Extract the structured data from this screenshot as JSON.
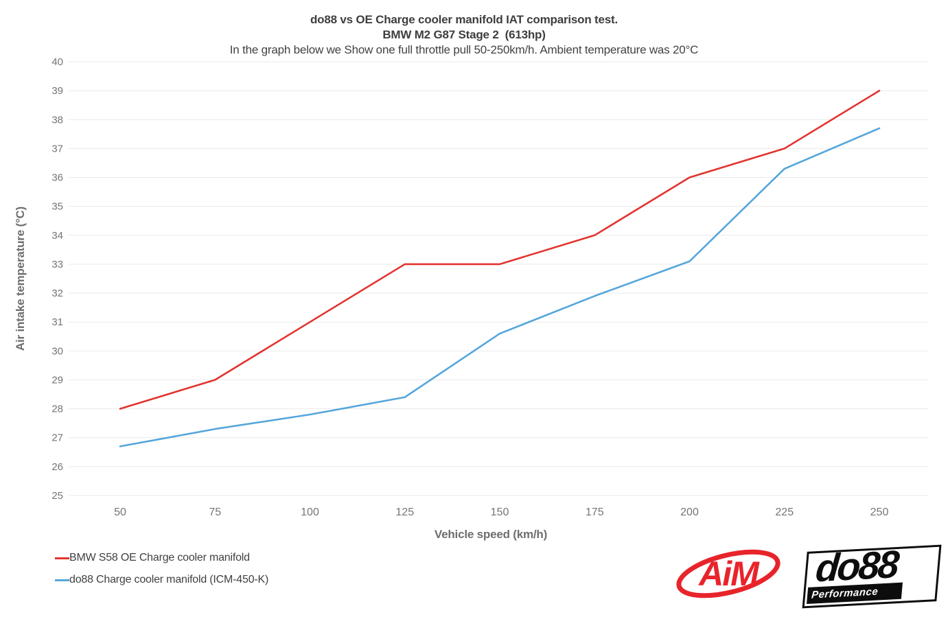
{
  "page": {
    "title_line1": "do88 vs OE Charge cooler manifold IAT comparison test.",
    "title_line2": "BMW M2 G87 Stage 2  (613hp)",
    "title_line3": "In the graph below we Show one full throttle pull 50-250km/h. Ambient temperature was 20°C"
  },
  "chart_data": {
    "type": "line",
    "title": "do88 vs OE Charge cooler manifold IAT comparison test.",
    "subtitle": "BMW M2 G87 Stage 2  (613hp)",
    "caption": "In the graph below we Show one full throttle pull 50-250km/h. Ambient temperature was 20°C",
    "xlabel": "Vehicle speed (km/h)",
    "ylabel": "Air intake temperature (°C)",
    "x": [
      50,
      75,
      100,
      125,
      150,
      175,
      200,
      225,
      250
    ],
    "ylim": [
      25,
      40
    ],
    "ytick_step": 1,
    "grid": true,
    "legend_position": "bottom-left",
    "series": [
      {
        "name": "BMW S58 OE Charge cooler manifold",
        "color": "#e23430",
        "values": [
          28.0,
          29.0,
          31.0,
          33.0,
          33.0,
          34.0,
          36.0,
          37.0,
          39.0
        ]
      },
      {
        "name": "do88 Charge cooler manifold (ICM-450-K)",
        "color": "#55a6db",
        "values": [
          26.7,
          27.3,
          27.8,
          28.4,
          30.6,
          31.9,
          33.1,
          36.3,
          37.7
        ]
      }
    ]
  },
  "branding": {
    "aim_logo_text": "AiM",
    "aim_color": "#e8242b",
    "do88_logo_text": "do88",
    "do88_logo_subtext": "Performance",
    "do88_color": "#0d0d0d"
  },
  "colors": {
    "grid": "#e9e9e9",
    "title_text": "#3e3e3e",
    "axis_title_text": "#6e6e6e",
    "tick_text": "#747474",
    "legend_text": "#3f3f3f"
  }
}
